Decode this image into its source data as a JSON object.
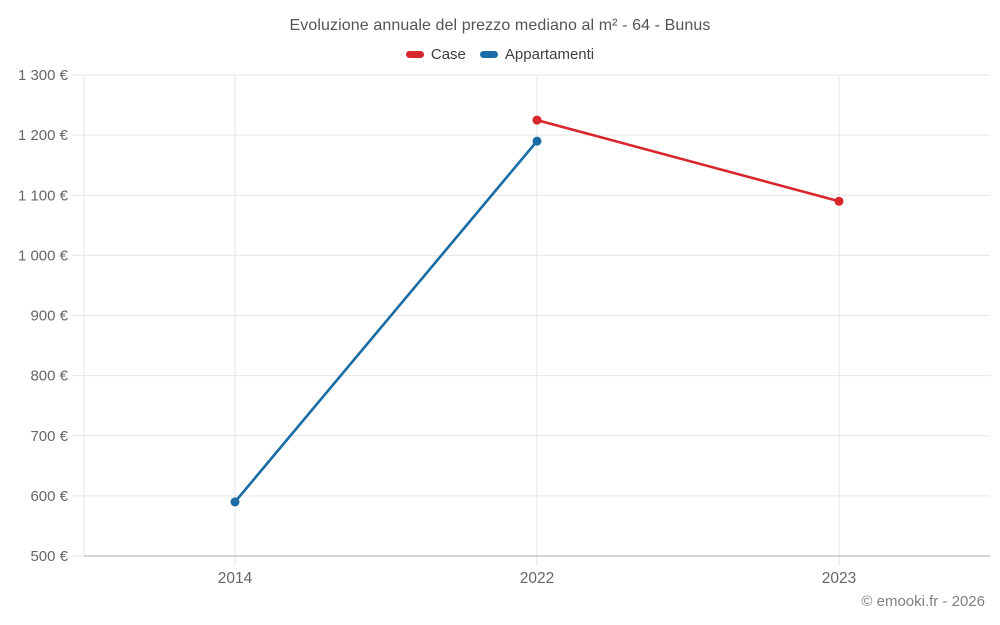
{
  "chart_data": {
    "type": "line",
    "title": "Evoluzione annuale del prezzo mediano al m² - 64 - Bunus",
    "categories": [
      "2014",
      "2022",
      "2023"
    ],
    "series": [
      {
        "name": "Case",
        "color": "#d8262c",
        "values": [
          null,
          1225,
          1090
        ]
      },
      {
        "name": "Appartamenti",
        "color": "#1a6ca6",
        "values": [
          590,
          1190,
          null
        ]
      }
    ],
    "ylim": [
      500,
      1300
    ],
    "y_tick_step": 100,
    "y_tick_labels": [
      "500 €",
      "600 €",
      "700 €",
      "800 €",
      "900 €",
      "1 000 €",
      "1 100 €",
      "1 200 €",
      "1 300 €"
    ],
    "y_unit": "€",
    "grid": true,
    "legend_position": "top",
    "colors": {
      "grid": "#e6e6e6",
      "axis_line": "#a9a9a9",
      "tick_text": "#666666",
      "title_text": "#545454",
      "legend_text": "#3f3f3f"
    }
  },
  "footer": {
    "copyright": "© emooki.fr - 2026"
  }
}
